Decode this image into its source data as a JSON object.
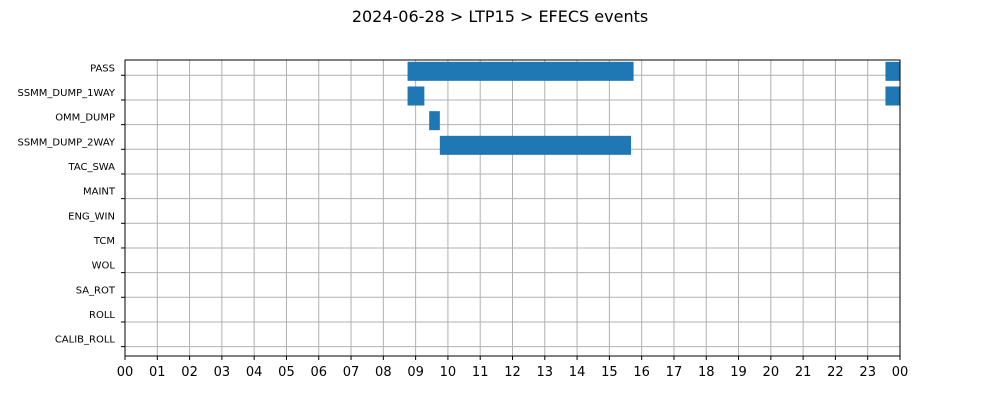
{
  "chart_data": {
    "type": "bar",
    "orientation": "horizontal-timeline",
    "title": "2024-06-28 > LTP15 > EFECS events",
    "xlabel": "",
    "ylabel": "",
    "xlim": [
      0,
      24
    ],
    "x_tick_labels": [
      "00",
      "01",
      "02",
      "03",
      "04",
      "05",
      "06",
      "07",
      "08",
      "09",
      "10",
      "11",
      "12",
      "13",
      "14",
      "15",
      "16",
      "17",
      "18",
      "19",
      "20",
      "21",
      "22",
      "23",
      "00"
    ],
    "categories": [
      "PASS",
      "SSMM_DUMP_1WAY",
      "OMM_DUMP",
      "SSMM_DUMP_2WAY",
      "TAC_SWA",
      "MAINT",
      "ENG_WIN",
      "TCM",
      "WOL",
      "SA_ROT",
      "ROLL",
      "CALIB_ROLL"
    ],
    "grid": true,
    "bar_color": "#1f77b4",
    "events": [
      {
        "category": "PASS",
        "start": 8.75,
        "end": 15.75
      },
      {
        "category": "PASS",
        "start": 23.55,
        "end": 24.0
      },
      {
        "category": "SSMM_DUMP_1WAY",
        "start": 8.75,
        "end": 9.27
      },
      {
        "category": "SSMM_DUMP_1WAY",
        "start": 23.55,
        "end": 24.0
      },
      {
        "category": "OMM_DUMP",
        "start": 9.42,
        "end": 9.75
      },
      {
        "category": "SSMM_DUMP_2WAY",
        "start": 9.75,
        "end": 15.67
      }
    ]
  }
}
